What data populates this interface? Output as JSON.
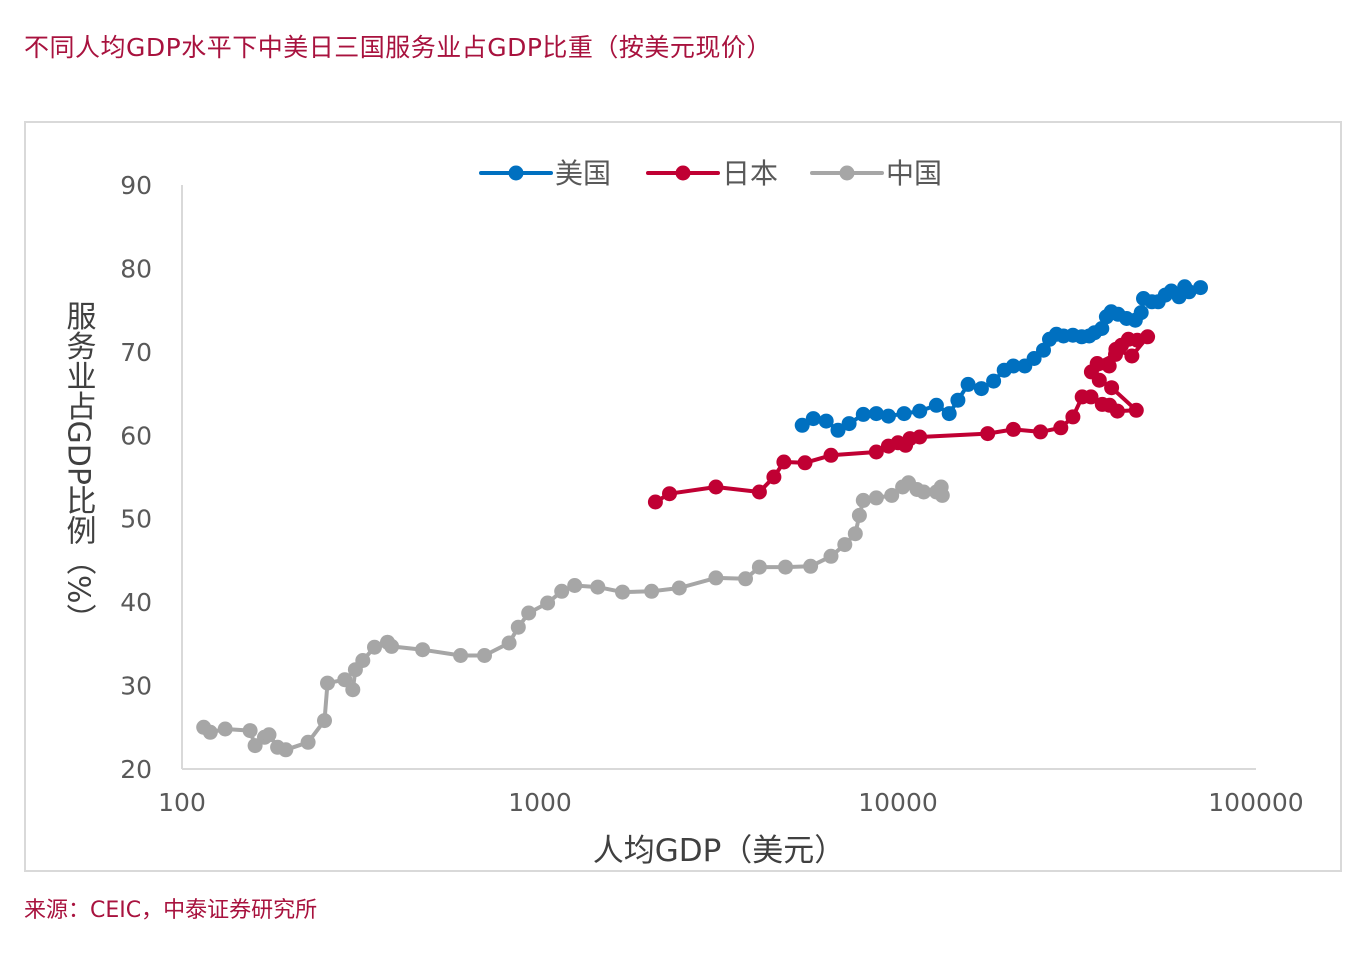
{
  "page": {
    "title": "不同人均GDP水平下中美日三国服务业占GDP比重（按美元现价）",
    "source": "来源：CEIC，中泰证券研究所"
  },
  "chart_data": {
    "type": "line",
    "xlabel": "人均GDP（美元）",
    "ylabel": "服务业占GDP比例（%）",
    "x_scale": "log",
    "xlim": [
      100,
      100000
    ],
    "ylim": [
      20,
      90
    ],
    "x_ticks": [
      {
        "value": 100,
        "label": "100"
      },
      {
        "value": 1000,
        "label": "1000"
      },
      {
        "value": 10000,
        "label": "10000"
      },
      {
        "value": 100000,
        "label": "100000"
      }
    ],
    "y_ticks": [
      {
        "value": 20,
        "label": "20"
      },
      {
        "value": 30,
        "label": "30"
      },
      {
        "value": 40,
        "label": "40"
      },
      {
        "value": 50,
        "label": "50"
      },
      {
        "value": 60,
        "label": "60"
      },
      {
        "value": 70,
        "label": "70"
      },
      {
        "value": 80,
        "label": "80"
      },
      {
        "value": 90,
        "label": "90"
      }
    ],
    "grid": false,
    "legend_position": "top",
    "series": [
      {
        "name": "美国",
        "color": "#0070c0",
        "points": [
          [
            5400,
            61.2
          ],
          [
            5800,
            62.0
          ],
          [
            6300,
            61.7
          ],
          [
            6800,
            60.6
          ],
          [
            7300,
            61.4
          ],
          [
            8000,
            62.5
          ],
          [
            8700,
            62.6
          ],
          [
            9400,
            62.3
          ],
          [
            10400,
            62.6
          ],
          [
            11500,
            62.9
          ],
          [
            12800,
            63.6
          ],
          [
            13900,
            62.6
          ],
          [
            14700,
            64.2
          ],
          [
            15700,
            66.1
          ],
          [
            17100,
            65.6
          ],
          [
            18500,
            66.5
          ],
          [
            19800,
            67.8
          ],
          [
            21000,
            68.3
          ],
          [
            22600,
            68.3
          ],
          [
            24000,
            69.2
          ],
          [
            25500,
            70.2
          ],
          [
            26500,
            71.5
          ],
          [
            27700,
            72.1
          ],
          [
            29000,
            71.9
          ],
          [
            30800,
            72.0
          ],
          [
            32600,
            71.8
          ],
          [
            34200,
            71.9
          ],
          [
            35400,
            72.3
          ],
          [
            37100,
            72.8
          ],
          [
            38200,
            74.2
          ],
          [
            39400,
            74.8
          ],
          [
            41200,
            74.5
          ],
          [
            43500,
            74.0
          ],
          [
            46000,
            73.8
          ],
          [
            47800,
            74.7
          ],
          [
            48500,
            76.4
          ],
          [
            51200,
            76.0
          ],
          [
            53300,
            76.0
          ],
          [
            55800,
            76.8
          ],
          [
            58000,
            77.3
          ],
          [
            61000,
            76.6
          ],
          [
            63200,
            77.8
          ],
          [
            65000,
            77.2
          ],
          [
            70000,
            77.7
          ]
        ]
      },
      {
        "name": "日本",
        "color": "#c00033",
        "points": [
          [
            2100,
            52.0
          ],
          [
            2300,
            53.0
          ],
          [
            3100,
            53.8
          ],
          [
            4100,
            53.2
          ],
          [
            4500,
            55.0
          ],
          [
            4800,
            56.8
          ],
          [
            5500,
            56.7
          ],
          [
            6500,
            57.6
          ],
          [
            8700,
            58.0
          ],
          [
            9400,
            58.7
          ],
          [
            10000,
            59.1
          ],
          [
            10500,
            58.8
          ],
          [
            10800,
            59.6
          ],
          [
            11500,
            59.8
          ],
          [
            17800,
            60.2
          ],
          [
            21000,
            60.7
          ],
          [
            25000,
            60.4
          ],
          [
            28500,
            60.9
          ],
          [
            30800,
            62.2
          ],
          [
            32700,
            64.6
          ],
          [
            34600,
            64.6
          ],
          [
            37200,
            63.7
          ],
          [
            39000,
            63.6
          ],
          [
            41000,
            62.9
          ],
          [
            46300,
            63.0
          ],
          [
            39500,
            65.7
          ],
          [
            36500,
            66.6
          ],
          [
            34700,
            67.6
          ],
          [
            38900,
            68.3
          ],
          [
            36000,
            68.6
          ],
          [
            40500,
            69.7
          ],
          [
            42100,
            70.8
          ],
          [
            44000,
            71.5
          ],
          [
            46600,
            71.4
          ],
          [
            49800,
            71.8
          ],
          [
            45000,
            69.5
          ],
          [
            40600,
            70.3
          ]
        ]
      },
      {
        "name": "中国",
        "color": "#a6a6a6",
        "points": [
          [
            115,
            25.0
          ],
          [
            120,
            24.4
          ],
          [
            132,
            24.8
          ],
          [
            155,
            24.6
          ],
          [
            160,
            22.8
          ],
          [
            170,
            23.8
          ],
          [
            175,
            24.1
          ],
          [
            185,
            22.6
          ],
          [
            195,
            22.3
          ],
          [
            225,
            23.2
          ],
          [
            250,
            25.8
          ],
          [
            255,
            30.3
          ],
          [
            285,
            30.7
          ],
          [
            300,
            29.5
          ],
          [
            305,
            31.9
          ],
          [
            320,
            33.0
          ],
          [
            345,
            34.6
          ],
          [
            375,
            35.2
          ],
          [
            385,
            34.7
          ],
          [
            470,
            34.3
          ],
          [
            600,
            33.6
          ],
          [
            700,
            33.6
          ],
          [
            820,
            35.1
          ],
          [
            870,
            37.0
          ],
          [
            930,
            38.7
          ],
          [
            1050,
            39.9
          ],
          [
            1150,
            41.3
          ],
          [
            1250,
            42.0
          ],
          [
            1450,
            41.8
          ],
          [
            1700,
            41.2
          ],
          [
            2050,
            41.3
          ],
          [
            2450,
            41.7
          ],
          [
            3100,
            42.9
          ],
          [
            3750,
            42.8
          ],
          [
            4100,
            44.2
          ],
          [
            4850,
            44.2
          ],
          [
            5700,
            44.3
          ],
          [
            6500,
            45.5
          ],
          [
            7100,
            46.9
          ],
          [
            7600,
            48.2
          ],
          [
            7800,
            50.4
          ],
          [
            8000,
            52.2
          ],
          [
            8700,
            52.5
          ],
          [
            9600,
            52.8
          ],
          [
            10300,
            53.8
          ],
          [
            10700,
            54.3
          ],
          [
            11300,
            53.5
          ],
          [
            11800,
            53.2
          ],
          [
            12800,
            53.2
          ],
          [
            13200,
            53.8
          ],
          [
            13300,
            52.8
          ]
        ]
      }
    ]
  }
}
